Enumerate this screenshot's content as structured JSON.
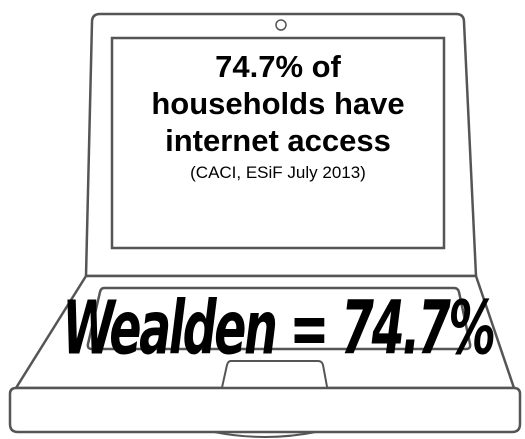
{
  "screen": {
    "headline": "74.7% of households have internet access",
    "source": "(CACI, ESiF July 2013)"
  },
  "keyboard": {
    "label": "Wealden = 74.7%"
  }
}
